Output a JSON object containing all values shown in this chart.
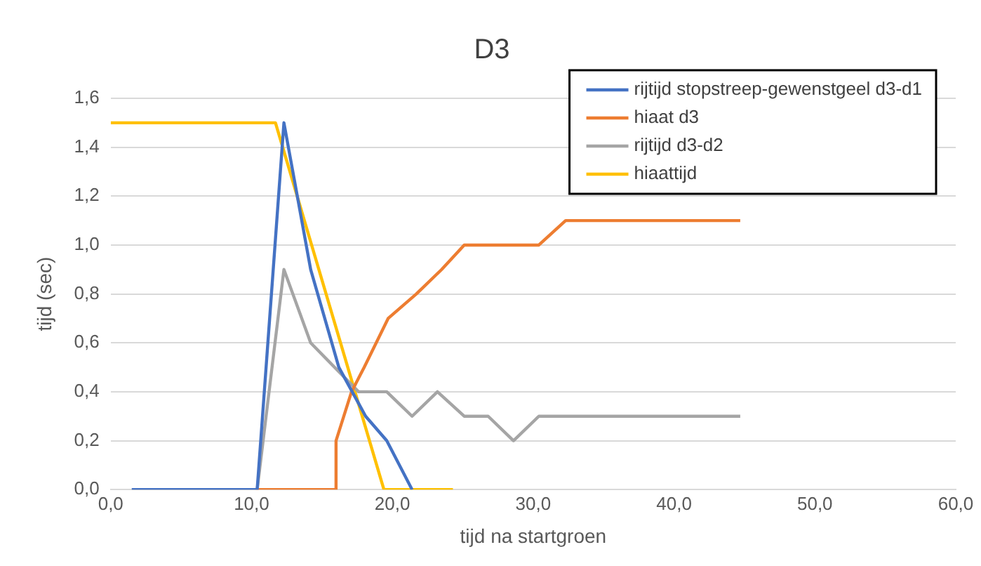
{
  "chart_data": {
    "type": "line",
    "title": "D3",
    "xlabel": "tijd na startgroen",
    "ylabel": "tijd (sec)",
    "xlim": [
      0,
      60
    ],
    "xticks": [
      {
        "value": 0,
        "label": "0,0"
      },
      {
        "value": 10,
        "label": "10,0"
      },
      {
        "value": 20,
        "label": "20,0"
      },
      {
        "value": 30,
        "label": "30,0"
      },
      {
        "value": 40,
        "label": "40,0"
      },
      {
        "value": 50,
        "label": "50,0"
      },
      {
        "value": 60,
        "label": "60,0"
      }
    ],
    "ylim": [
      0,
      1.6
    ],
    "yticks": [
      {
        "value": 0,
        "label": "0,0"
      },
      {
        "value": 0.2,
        "label": "0,2"
      },
      {
        "value": 0.4,
        "label": "0,4"
      },
      {
        "value": 0.6,
        "label": "0,6"
      },
      {
        "value": 0.8,
        "label": "0,8"
      },
      {
        "value": 1.0,
        "label": "1,0"
      },
      {
        "value": 1.2,
        "label": "1,2"
      },
      {
        "value": 1.4,
        "label": "1,4"
      },
      {
        "value": 1.6,
        "label": "1,6"
      }
    ],
    "grid": "y",
    "legend": "top right",
    "marker": "none",
    "line_style": "solid",
    "series": [
      {
        "name": "rijtijd stopstreep-gewenstgeel d3-d1",
        "color": "#4472c4",
        "x": [
          1.5,
          10.4,
          12.3,
          14.2,
          16.2,
          18.1,
          19.6,
          21.4
        ],
        "values": [
          0,
          0,
          1.5,
          0.9,
          0.5,
          0.3,
          0.2,
          0
        ]
      },
      {
        "name": "hiaat d3",
        "color": "#ed7d31",
        "x": [
          10.3,
          12.3,
          16.0,
          16.0,
          17.1,
          18.0,
          19.7,
          21.7,
          23.5,
          25.1,
          30.4,
          32.3,
          44.7
        ],
        "values": [
          0,
          0,
          0,
          0.2,
          0.4,
          0.5,
          0.7,
          0.8,
          0.9,
          1.0,
          1.0,
          1.1,
          1.1
        ]
      },
      {
        "name": "rijtijd d3-d2",
        "color": "#a5a5a5",
        "x": [
          1.5,
          10.4,
          12.3,
          14.2,
          17.6,
          19.6,
          21.4,
          23.2,
          25.1,
          26.8,
          28.6,
          30.4,
          44.7
        ],
        "values": [
          0,
          0,
          0.9,
          0.6,
          0.4,
          0.4,
          0.3,
          0.4,
          0.3,
          0.3,
          0.2,
          0.3,
          0.3
        ]
      },
      {
        "name": "hiaattijd",
        "color": "#ffc000",
        "x": [
          0,
          11.7,
          19.4,
          24.3
        ],
        "values": [
          1.5,
          1.5,
          0,
          0
        ]
      }
    ]
  }
}
